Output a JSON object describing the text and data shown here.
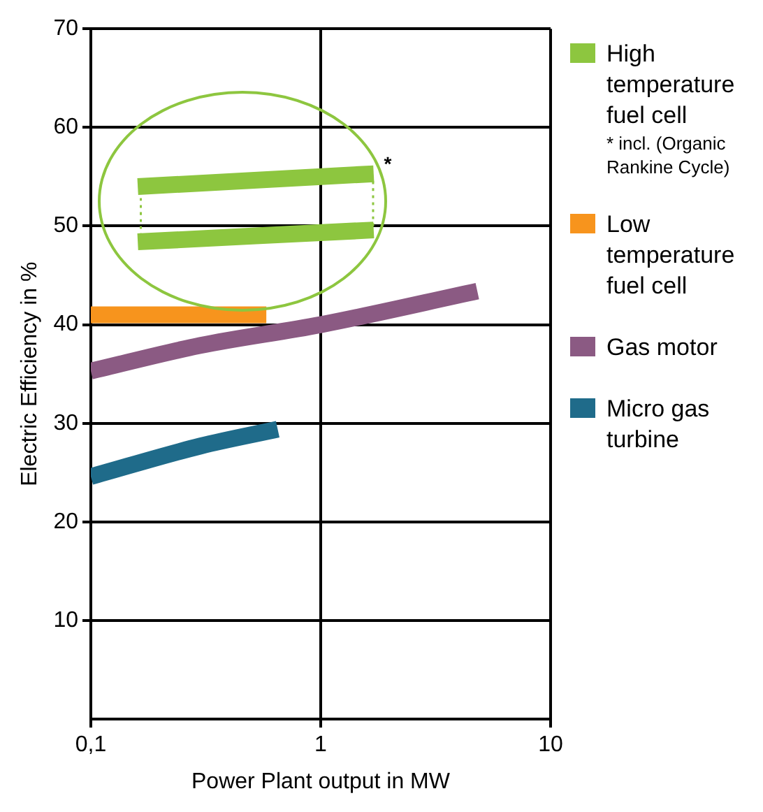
{
  "chart_data": {
    "type": "line",
    "xlabel": "Power Plant output in MW",
    "ylabel": "Electric Efficiency in %",
    "log": "x",
    "xlim": [
      0.1,
      10
    ],
    "xticks": [
      {
        "value": 0.1,
        "label": "0,1"
      },
      1,
      10
    ],
    "ylim": [
      0,
      70
    ],
    "yticks": [
      10,
      20,
      30,
      40,
      50,
      60,
      70
    ],
    "grid": true,
    "legend": "right",
    "marker": "none",
    "series": [
      {
        "name": "High temperature fuel cell",
        "color": "#8dc63f",
        "x": [
          0.16,
          1.7
        ],
        "values": [
          54,
          55.3
        ]
      },
      {
        "color": "#8dc63f",
        "x": [
          0.16,
          1.7
        ],
        "values": [
          48.4,
          49.6
        ]
      },
      {
        "color": "#8dc63f",
        "x": [
          0.165,
          0.165
        ],
        "values": [
          49,
          53.5
        ],
        "line_style": "dotted"
      },
      {
        "color": "#8dc63f",
        "x": [
          1.69,
          1.69
        ],
        "values": [
          50,
          54.8
        ],
        "line_style": "dotted"
      },
      {
        "name": "Low temperature fuel cell",
        "color": "#f7941d",
        "x": [
          0.1,
          0.58
        ],
        "values": [
          41,
          41
        ]
      },
      {
        "name": "Gas motor",
        "color": "#8b5a83",
        "x": [
          0.1,
          0.3,
          1,
          4.8
        ],
        "values": [
          35.3,
          37.9,
          40,
          43.4
        ]
      },
      {
        "name": "Micro gas turbine",
        "color": "#1f6b8a",
        "x": [
          0.1,
          0.3,
          0.65
        ],
        "values": [
          24.6,
          27.7,
          29.4
        ]
      }
    ],
    "annotations": [
      "*",
      "* incl. (Organic Rankine Cycle)"
    ]
  }
}
